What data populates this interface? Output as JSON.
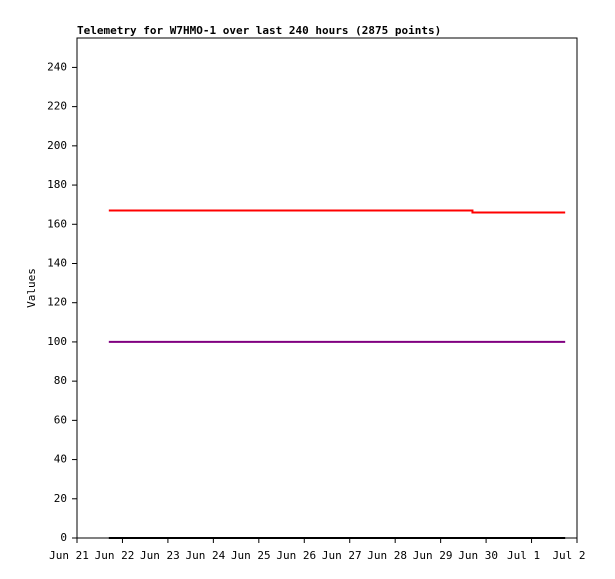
{
  "chart_data": {
    "type": "line",
    "title": "Telemetry for W7HMO-1 over last 240 hours (2875 points)",
    "ylabel": "Values",
    "xlim": [
      0,
      11
    ],
    "xticks": [
      {
        "value": 0,
        "label": "Jun 21"
      },
      {
        "value": 1,
        "label": "Jun 22"
      },
      {
        "value": 2,
        "label": "Jun 23"
      },
      {
        "value": 3,
        "label": "Jun 24"
      },
      {
        "value": 4,
        "label": "Jun 25"
      },
      {
        "value": 5,
        "label": "Jun 26"
      },
      {
        "value": 6,
        "label": "Jun 27"
      },
      {
        "value": 7,
        "label": "Jun 28"
      },
      {
        "value": 8,
        "label": "Jun 29"
      },
      {
        "value": 9,
        "label": "Jun 30"
      },
      {
        "value": 10,
        "label": "Jul 1"
      },
      {
        "value": 11,
        "label": "Jul 2"
      }
    ],
    "ylim": [
      0,
      255
    ],
    "yticks": [
      0,
      20,
      40,
      60,
      80,
      100,
      120,
      140,
      160,
      180,
      200,
      220,
      240
    ],
    "series": [
      {
        "color": "#ff0000",
        "x": [
          0.7,
          8.7,
          8.7,
          10.74
        ],
        "values": [
          167,
          167,
          166,
          166
        ]
      },
      {
        "color": "#800080",
        "x": [
          0.7,
          10.74
        ],
        "values": [
          100,
          100
        ]
      },
      {
        "color": "#000000",
        "x": [
          0.7,
          10.74
        ],
        "values": [
          0,
          0
        ]
      }
    ]
  }
}
